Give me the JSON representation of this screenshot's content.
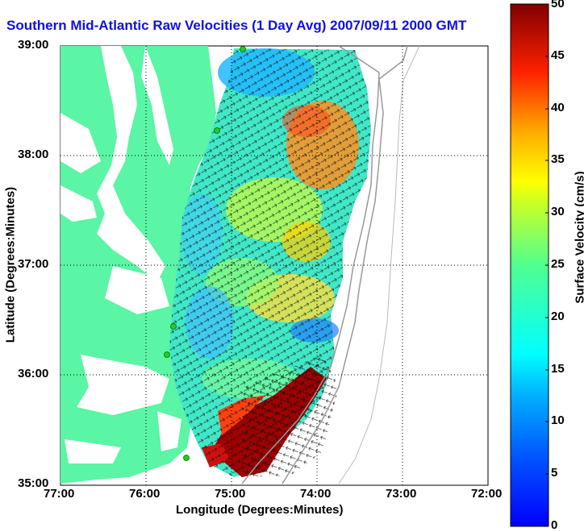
{
  "title": "Southern Mid-Atlantic Raw Velocities (1 Day Avg) 2007/09/11 2000 GMT",
  "x_axis": {
    "label": "Longitude (Degrees:Minutes)",
    "ticks": [
      "77:00",
      "76:00",
      "75:00",
      "74:00",
      "73:00",
      "72:00"
    ]
  },
  "y_axis": {
    "label": "Latitude (Degrees:Minutes)",
    "ticks": [
      "39:00",
      "38:00",
      "37:00",
      "36:00",
      "35:00"
    ]
  },
  "colorbar": {
    "label": "Surface Velocity (cm/s)",
    "min": 0,
    "max": 50,
    "ticks": [
      "0",
      "5",
      "10",
      "15",
      "20",
      "25",
      "30",
      "35",
      "40",
      "45",
      "50"
    ],
    "colormap": "jet"
  },
  "colors": {
    "land": "#5af5a5",
    "water": "#ffffff",
    "title": "#1010e0",
    "station": "#22cc22"
  },
  "grid": "dotted"
}
